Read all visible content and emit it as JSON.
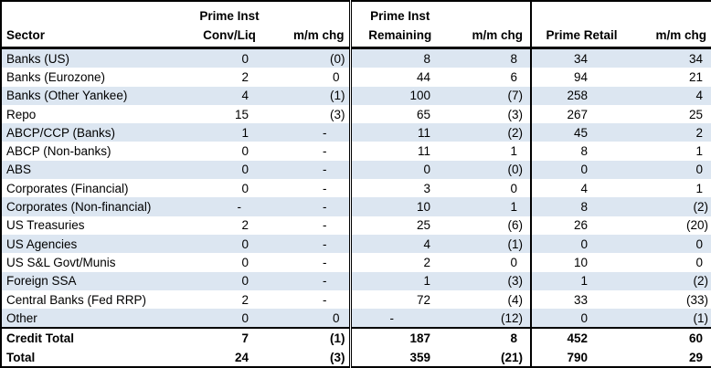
{
  "table": {
    "header": {
      "sector": {
        "line1": "",
        "line2": "Sector"
      },
      "groups": [
        {
          "line1": "Prime Inst",
          "line2": "Conv/Liq"
        },
        {
          "line1": "",
          "line2": "m/m chg"
        },
        {
          "line1": "Prime Inst",
          "line2": "Remaining"
        },
        {
          "line1": "",
          "line2": "m/m chg"
        },
        {
          "line1": "",
          "line2": "Prime Retail"
        },
        {
          "line1": "",
          "line2": "m/m chg"
        }
      ]
    },
    "rows": [
      {
        "sector": "Banks (US)",
        "values": [
          "0",
          "(0)",
          "8",
          "8",
          "34",
          "34"
        ]
      },
      {
        "sector": "Banks (Eurozone)",
        "values": [
          "2",
          "0",
          "44",
          "6",
          "94",
          "21"
        ]
      },
      {
        "sector": "Banks (Other Yankee)",
        "values": [
          "4",
          "(1)",
          "100",
          "(7)",
          "258",
          "4"
        ]
      },
      {
        "sector": "Repo",
        "values": [
          "15",
          "(3)",
          "65",
          "(3)",
          "267",
          "25"
        ]
      },
      {
        "sector": "ABCP/CCP (Banks)",
        "values": [
          "1",
          "-",
          "11",
          "(2)",
          "45",
          "2"
        ]
      },
      {
        "sector": "ABCP (Non-banks)",
        "values": [
          "0",
          "-",
          "11",
          "1",
          "8",
          "1"
        ]
      },
      {
        "sector": "ABS",
        "values": [
          "0",
          "-",
          "0",
          "(0)",
          "0",
          "0"
        ]
      },
      {
        "sector": "Corporates (Financial)",
        "values": [
          "0",
          "-",
          "3",
          "0",
          "4",
          "1"
        ]
      },
      {
        "sector": "Corporates (Non-financial)",
        "values": [
          "-",
          "-",
          "10",
          "1",
          "8",
          "(2)"
        ]
      },
      {
        "sector": "US Treasuries",
        "values": [
          "2",
          "-",
          "25",
          "(6)",
          "26",
          "(20)"
        ]
      },
      {
        "sector": "US Agencies",
        "values": [
          "0",
          "-",
          "4",
          "(1)",
          "0",
          "0"
        ]
      },
      {
        "sector": "US S&L Govt/Munis",
        "values": [
          "0",
          "-",
          "2",
          "0",
          "10",
          "0"
        ]
      },
      {
        "sector": "Foreign SSA",
        "values": [
          "0",
          "-",
          "1",
          "(3)",
          "1",
          "(2)"
        ]
      },
      {
        "sector": "Central Banks (Fed RRP)",
        "values": [
          "2",
          "-",
          "72",
          "(4)",
          "33",
          "(33)"
        ]
      },
      {
        "sector": "Other",
        "values": [
          "0",
          "0",
          "-",
          "(12)",
          "0",
          "(1)"
        ]
      }
    ],
    "totals": [
      {
        "sector": "Credit Total",
        "values": [
          "7",
          "(1)",
          "187",
          "8",
          "452",
          "60"
        ]
      },
      {
        "sector": "Total",
        "values": [
          "24",
          "(3)",
          "359",
          "(21)",
          "790",
          "29"
        ]
      }
    ],
    "colors": {
      "row_band": "#dce6f1",
      "border": "#000000",
      "text": "#000000",
      "background": "#ffffff"
    }
  }
}
